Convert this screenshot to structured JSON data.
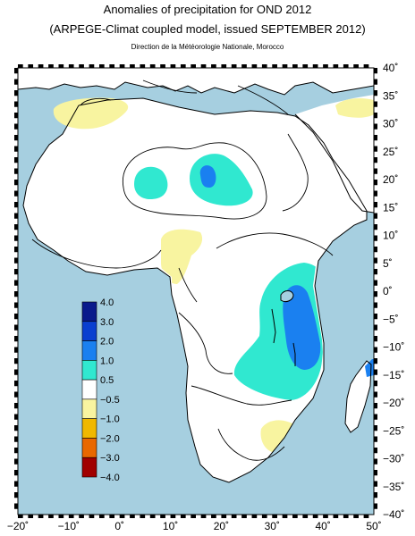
{
  "header": {
    "title": "Anomalies of precipitation for OND 2012",
    "subtitle": "(ARPEGE-Climat coupled model, issued SEPTEMBER 2012)",
    "credit": "Direction de la Météorologie Nationale, Morocco"
  },
  "map": {
    "lon_range": [
      -20,
      50
    ],
    "lat_range": [
      -40,
      40
    ],
    "lon_ticks": [
      -20,
      -10,
      0,
      10,
      20,
      30,
      40,
      50
    ],
    "lat_ticks": [
      40,
      35,
      30,
      25,
      20,
      15,
      10,
      5,
      0,
      -5,
      -10,
      -15,
      -20,
      -25,
      -30,
      -35,
      -40
    ],
    "lon_labels": [
      "−20˚",
      "−10˚",
      "0˚",
      "10˚",
      "20˚",
      "30˚",
      "40˚",
      "50˚"
    ],
    "lat_labels": [
      "40˚",
      "35˚",
      "30˚",
      "25˚",
      "20˚",
      "15˚",
      "10˚",
      "5˚",
      "0˚",
      "−5˚",
      "−10˚",
      "−15˚",
      "−20˚",
      "−25˚",
      "−30˚",
      "−35˚",
      "−40˚"
    ],
    "colors": {
      "ocean": "#a6cfe0",
      "land": "#ffffff"
    }
  },
  "legend": {
    "bins": [
      {
        "label": "4.0",
        "color": "#0a1a8c"
      },
      {
        "label": "3.0",
        "color": "#0a3fd0"
      },
      {
        "label": "2.0",
        "color": "#1a80f0"
      },
      {
        "label": "1.0",
        "color": "#30e8d0"
      },
      {
        "label": "0.5",
        "color": "#ffffff"
      },
      {
        "label": "−0.5",
        "color": "#f8f4a0"
      },
      {
        "label": "−1.0",
        "color": "#f0b800"
      },
      {
        "label": "−2.0",
        "color": "#e86800"
      },
      {
        "label": "−3.0",
        "color": "#a00000"
      },
      {
        "label": "−4.0",
        "color": null
      }
    ]
  },
  "anomaly_regions": [
    {
      "name": "wet-1",
      "color": "#30e8d0"
    },
    {
      "name": "wet-2",
      "color": "#1a80f0"
    },
    {
      "name": "dry-1",
      "color": "#f8f4a0"
    }
  ]
}
